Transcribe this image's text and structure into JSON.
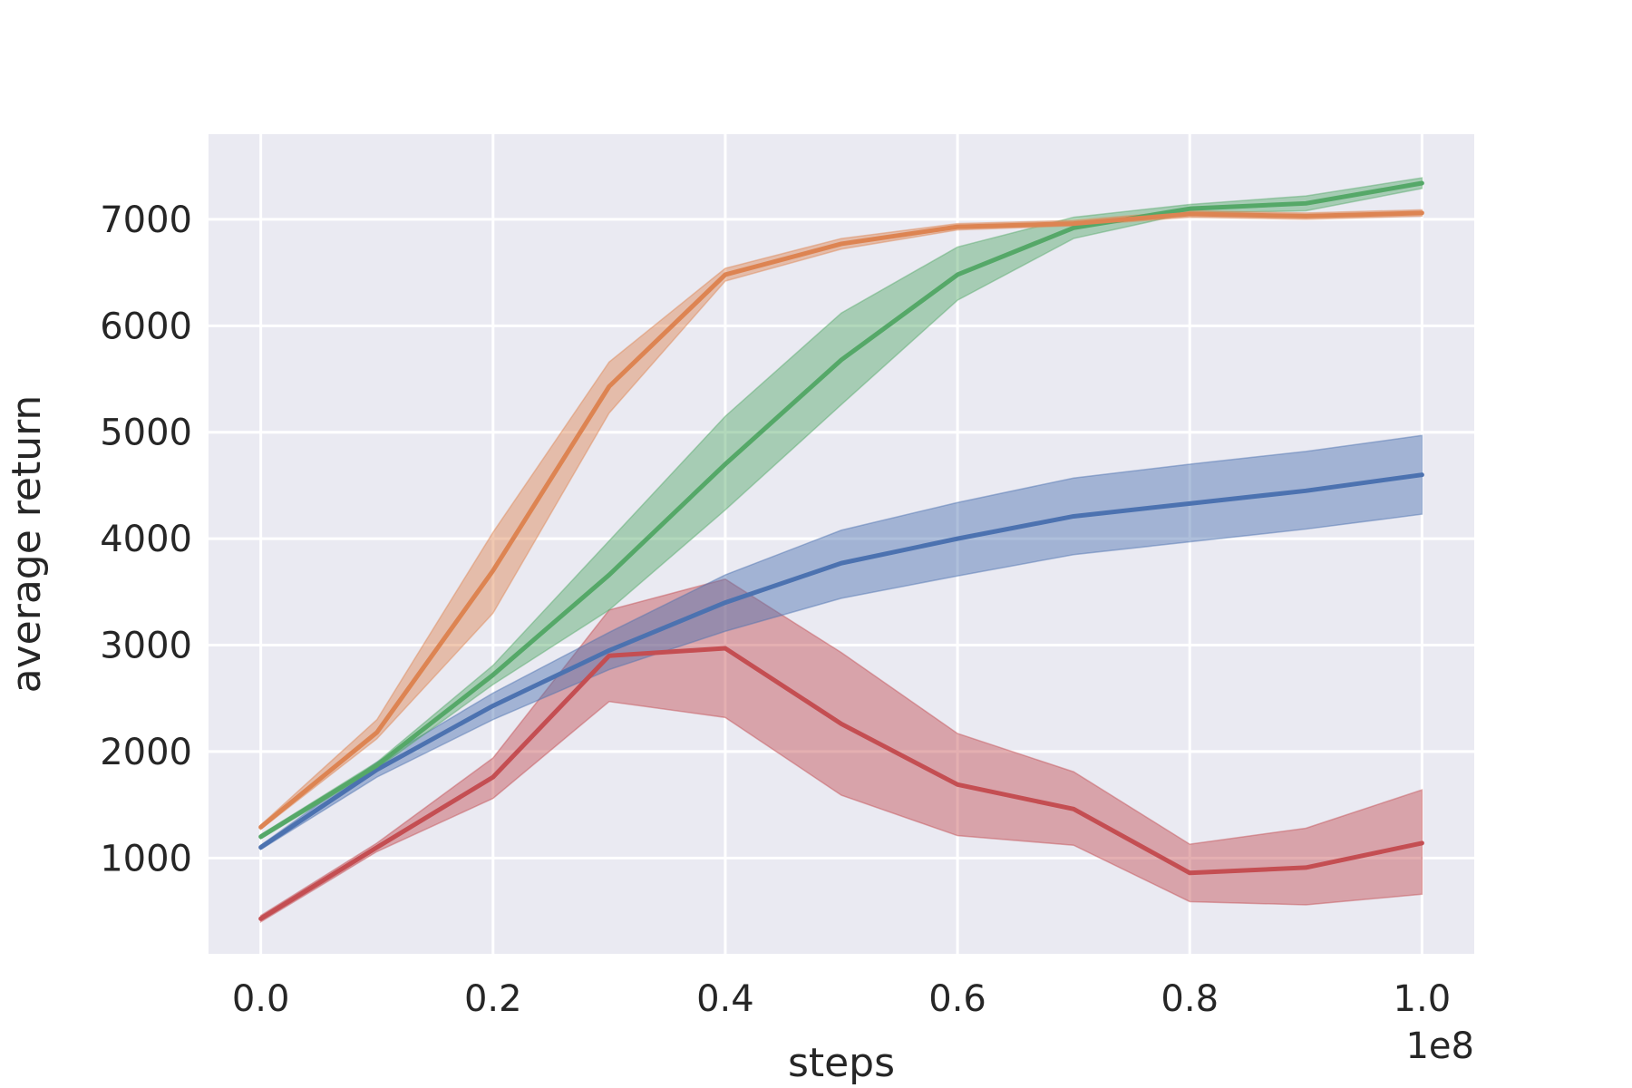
{
  "chart_data": {
    "type": "line",
    "title": "",
    "xlabel": "steps",
    "ylabel": "average return",
    "x_offset_label": "1e8",
    "x": [
      0.0,
      0.1,
      0.2,
      0.3,
      0.4,
      0.5,
      0.6,
      0.7,
      0.8,
      0.9,
      1.0
    ],
    "xlim": [
      -0.045,
      1.045
    ],
    "ylim": [
      100,
      7800
    ],
    "xticks": [
      0.0,
      0.2,
      0.4,
      0.6,
      0.8,
      1.0
    ],
    "xtick_labels": [
      "0.0",
      "0.2",
      "0.4",
      "0.6",
      "0.8",
      "1.0"
    ],
    "yticks": [
      1000,
      2000,
      3000,
      4000,
      5000,
      6000,
      7000
    ],
    "ytick_labels": [
      "1000",
      "2000",
      "3000",
      "4000",
      "5000",
      "6000",
      "7000"
    ],
    "grid": true,
    "legend": "none",
    "background": "#eaeaf2",
    "series": [
      {
        "color": "#c44e52",
        "values": [
          430,
          1100,
          1760,
          2900,
          2970,
          2260,
          1690,
          1460,
          860,
          910,
          1140
        ],
        "lower": [
          400,
          1060,
          1560,
          2470,
          2320,
          1590,
          1210,
          1120,
          590,
          560,
          660
        ],
        "upper": [
          460,
          1140,
          1940,
          3330,
          3620,
          2930,
          2170,
          1810,
          1130,
          1280,
          1640
        ]
      },
      {
        "color": "#4c72b0",
        "values": [
          1100,
          1830,
          2430,
          2950,
          3400,
          3770,
          4000,
          4210,
          4330,
          4450,
          4600
        ],
        "lower": [
          1080,
          1760,
          2300,
          2770,
          3130,
          3440,
          3650,
          3850,
          3970,
          4090,
          4230
        ],
        "upper": [
          1120,
          1900,
          2550,
          3120,
          3660,
          4080,
          4340,
          4570,
          4700,
          4820,
          4970
        ]
      },
      {
        "color": "#55a868",
        "values": [
          1200,
          1870,
          2720,
          3660,
          4700,
          5680,
          6480,
          6920,
          7100,
          7150,
          7340
        ],
        "lower": [
          1180,
          1840,
          2630,
          3330,
          4270,
          5260,
          6240,
          6820,
          7060,
          7080,
          7290
        ],
        "upper": [
          1220,
          1900,
          2810,
          3980,
          5150,
          6120,
          6740,
          7020,
          7140,
          7220,
          7390
        ]
      },
      {
        "color": "#dd8452",
        "values": [
          1290,
          2180,
          3700,
          5430,
          6480,
          6770,
          6930,
          6960,
          7050,
          7030,
          7060
        ],
        "lower": [
          1270,
          2120,
          3300,
          5180,
          6420,
          6720,
          6900,
          6940,
          7020,
          7000,
          7030
        ],
        "upper": [
          1310,
          2300,
          4060,
          5660,
          6540,
          6820,
          6960,
          6990,
          7080,
          7060,
          7090
        ]
      }
    ]
  }
}
